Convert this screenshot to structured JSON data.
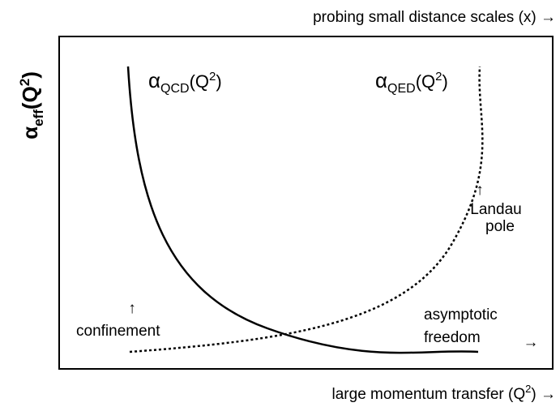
{
  "top_label": "probing small distance scales (x) →",
  "bottom_label": {
    "text": "large momentum transfer (Q",
    "sup": "2",
    "end": ") →"
  },
  "y_label": {
    "symbol": "α",
    "sub": "eff",
    "text": "(Q",
    "sup": "2",
    "end": ")"
  },
  "curves": [
    {
      "symbol": "α",
      "sub": "QCD",
      "text": "(Q",
      "sup": "2",
      "end": ")"
    },
    {
      "symbol": "α",
      "sub": "QED",
      "text": "(Q",
      "sup": "2",
      "end": ")"
    }
  ],
  "annotations": {
    "landau": {
      "arrow": "↑",
      "lines": [
        "Landau",
        "pole"
      ]
    },
    "confinement": {
      "arrow": "↑",
      "text": "confinement"
    },
    "asymptotic": {
      "lines": [
        "asymptotic",
        "freedom"
      ],
      "arrow": "→"
    }
  }
}
